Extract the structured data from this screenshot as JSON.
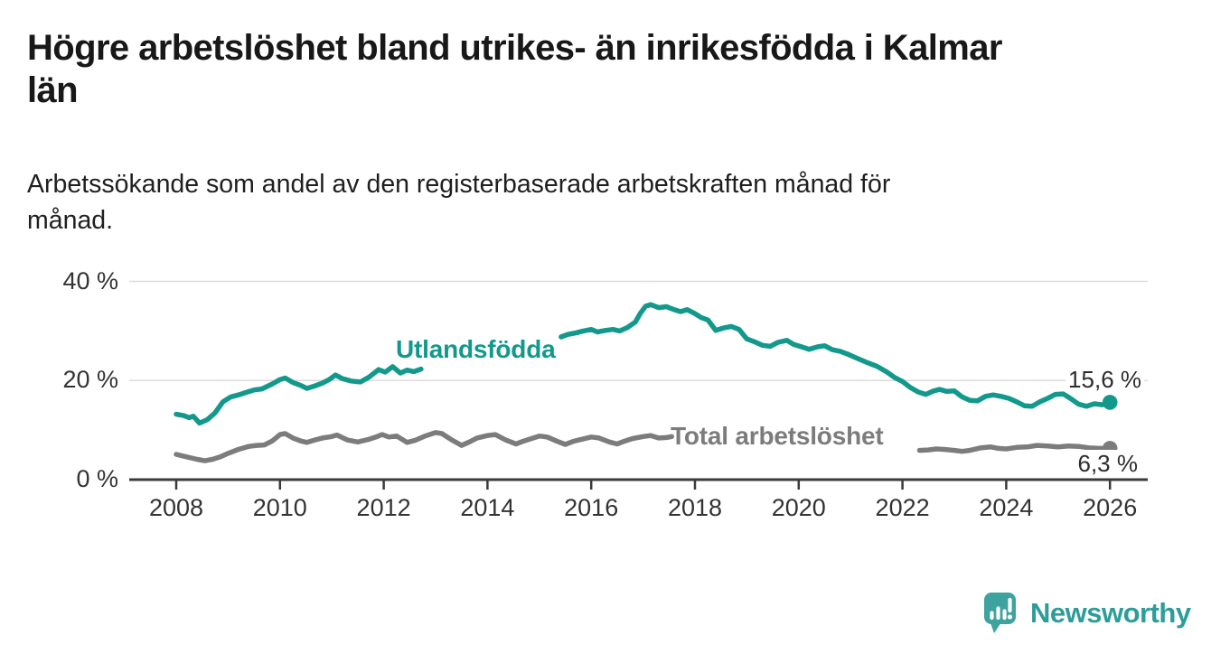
{
  "title": "Högre arbetslöshet bland utrikes- än inrikesfödda i Kalmar\nlän",
  "subtitle": "Arbetssökande som andel av den registerbaserade arbetskraften månad för\nmånad.",
  "branding": {
    "logo_text": "Newsworthy",
    "logo_icon": "bar-chart-speech-bubble-icon",
    "text_color": "#2C9D99",
    "icon_color": "#3EA39E"
  },
  "chart_data": {
    "type": "line",
    "title": "Högre arbetslöshet bland utrikes- än inrikesfödda i Kalmar län",
    "subtitle": "Arbetssökande som andel av den registerbaserade arbetskraften månad för månad.",
    "xlabel": "",
    "ylabel": "",
    "grid": true,
    "grid_color": "#dbdbdb",
    "axis_color": "#3a3a3a",
    "tick_text_color": "#333333",
    "legend": "inline-labels-on-lines",
    "x_axis": {
      "range": [
        2007.1,
        2026.73
      ],
      "ticks": [
        {
          "value": 2008,
          "label": "2008"
        },
        {
          "value": 2010,
          "label": "2010"
        },
        {
          "value": 2012,
          "label": "2012"
        },
        {
          "value": 2014,
          "label": "2014"
        },
        {
          "value": 2016,
          "label": "2016"
        },
        {
          "value": 2018,
          "label": "2018"
        },
        {
          "value": 2020,
          "label": "2020"
        },
        {
          "value": 2022,
          "label": "2022"
        },
        {
          "value": 2024,
          "label": "2024"
        },
        {
          "value": 2026,
          "label": "2026"
        }
      ]
    },
    "y_axis": {
      "range": [
        0,
        43
      ],
      "unit": "%",
      "ticks": [
        {
          "value": 0,
          "label": "0 %"
        },
        {
          "value": 20,
          "label": "20 %"
        },
        {
          "value": 40,
          "label": "40 %"
        }
      ]
    },
    "series": [
      {
        "name": "Utlandsfödda",
        "color": "#12998C",
        "end_value": 15.6,
        "end_label": "15,6 %",
        "note": "line interrupted by inline name label between 2012.7 and 2015.4",
        "segments": [
          [
            [
              2008.0,
              13.2
            ],
            [
              2008.15,
              12.9
            ],
            [
              2008.25,
              12.5
            ],
            [
              2008.33,
              12.8
            ],
            [
              2008.45,
              11.4
            ],
            [
              2008.6,
              12.1
            ],
            [
              2008.75,
              13.5
            ],
            [
              2008.9,
              15.7
            ],
            [
              2009.05,
              16.7
            ],
            [
              2009.2,
              17.1
            ],
            [
              2009.35,
              17.6
            ],
            [
              2009.5,
              18.1
            ],
            [
              2009.65,
              18.3
            ],
            [
              2009.85,
              19.3
            ],
            [
              2010.0,
              20.2
            ],
            [
              2010.1,
              20.5
            ],
            [
              2010.25,
              19.6
            ],
            [
              2010.4,
              19.0
            ],
            [
              2010.52,
              18.4
            ],
            [
              2010.67,
              18.9
            ],
            [
              2010.82,
              19.5
            ],
            [
              2010.95,
              20.2
            ],
            [
              2011.07,
              21.1
            ],
            [
              2011.2,
              20.4
            ],
            [
              2011.37,
              19.9
            ],
            [
              2011.55,
              19.7
            ],
            [
              2011.72,
              20.7
            ],
            [
              2011.9,
              22.2
            ],
            [
              2012.03,
              21.7
            ],
            [
              2012.17,
              22.8
            ],
            [
              2012.32,
              21.5
            ],
            [
              2012.45,
              22.1
            ],
            [
              2012.58,
              21.8
            ],
            [
              2012.72,
              22.3
            ]
          ],
          [
            [
              2015.42,
              28.8
            ],
            [
              2015.55,
              29.3
            ],
            [
              2015.7,
              29.6
            ],
            [
              2015.85,
              30.0
            ],
            [
              2016.0,
              30.3
            ],
            [
              2016.12,
              29.8
            ],
            [
              2016.27,
              30.1
            ],
            [
              2016.42,
              30.3
            ],
            [
              2016.55,
              30.0
            ],
            [
              2016.7,
              30.7
            ],
            [
              2016.85,
              31.8
            ],
            [
              2016.95,
              33.6
            ],
            [
              2017.05,
              35.0
            ],
            [
              2017.15,
              35.3
            ],
            [
              2017.3,
              34.7
            ],
            [
              2017.45,
              34.9
            ],
            [
              2017.6,
              34.3
            ],
            [
              2017.72,
              33.9
            ],
            [
              2017.85,
              34.3
            ],
            [
              2018.0,
              33.5
            ],
            [
              2018.12,
              32.7
            ],
            [
              2018.25,
              32.2
            ],
            [
              2018.4,
              30.1
            ],
            [
              2018.55,
              30.6
            ],
            [
              2018.7,
              30.9
            ],
            [
              2018.85,
              30.3
            ],
            [
              2019.0,
              28.4
            ],
            [
              2019.15,
              27.8
            ],
            [
              2019.3,
              27.1
            ],
            [
              2019.45,
              26.9
            ],
            [
              2019.6,
              27.7
            ],
            [
              2019.77,
              28.1
            ],
            [
              2019.9,
              27.3
            ],
            [
              2020.05,
              26.8
            ],
            [
              2020.2,
              26.3
            ],
            [
              2020.37,
              26.8
            ],
            [
              2020.5,
              27.0
            ],
            [
              2020.65,
              26.2
            ],
            [
              2020.8,
              25.9
            ],
            [
              2020.95,
              25.3
            ],
            [
              2021.1,
              24.6
            ],
            [
              2021.3,
              23.7
            ],
            [
              2021.5,
              22.9
            ],
            [
              2021.7,
              21.7
            ],
            [
              2021.85,
              20.6
            ],
            [
              2022.0,
              19.8
            ],
            [
              2022.15,
              18.6
            ],
            [
              2022.3,
              17.7
            ],
            [
              2022.45,
              17.2
            ],
            [
              2022.6,
              17.9
            ],
            [
              2022.72,
              18.2
            ],
            [
              2022.85,
              17.8
            ],
            [
              2023.0,
              17.9
            ],
            [
              2023.15,
              16.7
            ],
            [
              2023.3,
              16.0
            ],
            [
              2023.45,
              15.9
            ],
            [
              2023.6,
              16.8
            ],
            [
              2023.75,
              17.1
            ],
            [
              2023.9,
              16.8
            ],
            [
              2024.05,
              16.4
            ],
            [
              2024.2,
              15.7
            ],
            [
              2024.35,
              14.9
            ],
            [
              2024.5,
              14.8
            ],
            [
              2024.65,
              15.7
            ],
            [
              2024.8,
              16.4
            ],
            [
              2024.95,
              17.2
            ],
            [
              2025.1,
              17.3
            ],
            [
              2025.25,
              16.3
            ],
            [
              2025.4,
              15.2
            ],
            [
              2025.55,
              14.8
            ],
            [
              2025.7,
              15.3
            ],
            [
              2025.85,
              15.1
            ],
            [
              2026.0,
              15.6
            ]
          ]
        ]
      },
      {
        "name": "Total arbetslöshet",
        "color": "#7C7C7C",
        "end_value": 6.3,
        "end_label": "6,3 %",
        "note": "line interrupted by inline name label between 2017.55 and 2022.33",
        "segments": [
          [
            [
              2008.0,
              5.1
            ],
            [
              2008.2,
              4.6
            ],
            [
              2008.4,
              4.1
            ],
            [
              2008.55,
              3.8
            ],
            [
              2008.7,
              4.1
            ],
            [
              2008.85,
              4.6
            ],
            [
              2009.0,
              5.3
            ],
            [
              2009.2,
              6.1
            ],
            [
              2009.4,
              6.7
            ],
            [
              2009.55,
              6.9
            ],
            [
              2009.7,
              7.0
            ],
            [
              2009.85,
              7.8
            ],
            [
              2010.0,
              9.1
            ],
            [
              2010.1,
              9.3
            ],
            [
              2010.25,
              8.4
            ],
            [
              2010.4,
              7.8
            ],
            [
              2010.52,
              7.5
            ],
            [
              2010.67,
              8.0
            ],
            [
              2010.82,
              8.4
            ],
            [
              2011.0,
              8.7
            ],
            [
              2011.1,
              9.0
            ],
            [
              2011.3,
              8.0
            ],
            [
              2011.5,
              7.6
            ],
            [
              2011.7,
              8.1
            ],
            [
              2011.85,
              8.6
            ],
            [
              2011.97,
              9.1
            ],
            [
              2012.1,
              8.6
            ],
            [
              2012.25,
              8.8
            ],
            [
              2012.45,
              7.5
            ],
            [
              2012.6,
              7.9
            ],
            [
              2012.8,
              8.8
            ],
            [
              2013.0,
              9.5
            ],
            [
              2013.12,
              9.3
            ],
            [
              2013.3,
              8.1
            ],
            [
              2013.5,
              6.9
            ],
            [
              2013.65,
              7.6
            ],
            [
              2013.8,
              8.4
            ],
            [
              2014.0,
              8.9
            ],
            [
              2014.15,
              9.1
            ],
            [
              2014.35,
              8.0
            ],
            [
              2014.55,
              7.2
            ],
            [
              2014.7,
              7.8
            ],
            [
              2014.85,
              8.3
            ],
            [
              2015.0,
              8.8
            ],
            [
              2015.15,
              8.6
            ],
            [
              2015.35,
              7.7
            ],
            [
              2015.5,
              7.1
            ],
            [
              2015.65,
              7.7
            ],
            [
              2015.8,
              8.1
            ],
            [
              2016.0,
              8.6
            ],
            [
              2016.15,
              8.4
            ],
            [
              2016.35,
              7.6
            ],
            [
              2016.5,
              7.2
            ],
            [
              2016.65,
              7.8
            ],
            [
              2016.8,
              8.3
            ],
            [
              2017.0,
              8.7
            ],
            [
              2017.15,
              8.9
            ],
            [
              2017.3,
              8.4
            ],
            [
              2017.45,
              8.5
            ],
            [
              2017.55,
              8.7
            ]
          ],
          [
            [
              2022.33,
              5.9
            ],
            [
              2022.5,
              6.0
            ],
            [
              2022.65,
              6.2
            ],
            [
              2022.8,
              6.1
            ],
            [
              2023.0,
              5.9
            ],
            [
              2023.15,
              5.7
            ],
            [
              2023.3,
              5.9
            ],
            [
              2023.5,
              6.4
            ],
            [
              2023.7,
              6.6
            ],
            [
              2023.85,
              6.3
            ],
            [
              2024.0,
              6.2
            ],
            [
              2024.2,
              6.5
            ],
            [
              2024.4,
              6.6
            ],
            [
              2024.6,
              6.9
            ],
            [
              2024.8,
              6.8
            ],
            [
              2025.0,
              6.6
            ],
            [
              2025.2,
              6.8
            ],
            [
              2025.4,
              6.7
            ],
            [
              2025.6,
              6.4
            ],
            [
              2025.8,
              6.3
            ],
            [
              2026.0,
              6.3
            ]
          ]
        ]
      }
    ]
  }
}
